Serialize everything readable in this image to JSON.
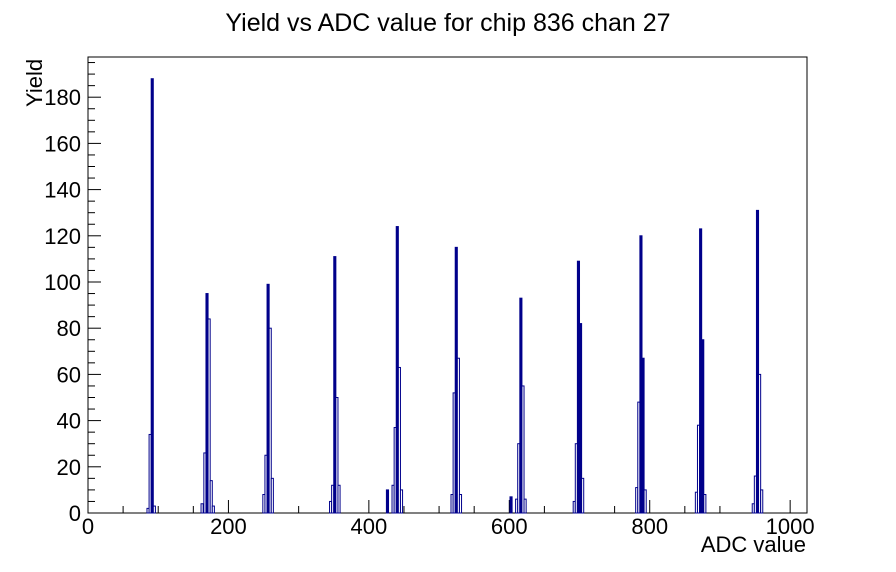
{
  "page": {
    "background": "#ffffff"
  },
  "chart_data": {
    "type": "bar",
    "title": "Yield vs ADC value for chip 836 chan 27",
    "xlabel": "ADC value",
    "ylabel": "Yield",
    "xlim": [
      0,
      1024
    ],
    "ylim": [
      0,
      197.4
    ],
    "x_major_ticks": [
      0,
      200,
      400,
      600,
      800,
      1000
    ],
    "x_minor_step": 50,
    "y_major_ticks": [
      0,
      20,
      40,
      60,
      80,
      100,
      120,
      140,
      160,
      180
    ],
    "y_minor_step": 5,
    "grid": false,
    "legend": false,
    "line_color": "#00008b",
    "frame_color": "#000000",
    "bin_width_adc": 3,
    "peaks": [
      {
        "center_adc": 90,
        "peak_height": 188,
        "bins": [
          [
            84,
            2,
            0
          ],
          [
            87,
            34,
            0
          ],
          [
            90,
            188,
            1
          ],
          [
            93,
            3,
            0
          ]
        ]
      },
      {
        "center_adc": 170,
        "peak_height": 95,
        "bins": [
          [
            161,
            4,
            0
          ],
          [
            165,
            26,
            0
          ],
          [
            168,
            95,
            1
          ],
          [
            171,
            84,
            0
          ],
          [
            174,
            14,
            0
          ],
          [
            177,
            3,
            0
          ]
        ]
      },
      {
        "center_adc": 256,
        "peak_height": 99,
        "bins": [
          [
            249,
            8,
            0
          ],
          [
            252,
            25,
            0
          ],
          [
            255,
            99,
            1
          ],
          [
            258,
            80,
            0
          ],
          [
            261,
            15,
            0
          ]
        ]
      },
      {
        "center_adc": 352,
        "peak_height": 111,
        "bins": [
          [
            344,
            5,
            0
          ],
          [
            347,
            12,
            0
          ],
          [
            350,
            111,
            1
          ],
          [
            353,
            50,
            0
          ],
          [
            356,
            12,
            0
          ]
        ]
      },
      {
        "center_adc": 438,
        "peak_height": 124,
        "bins": [
          [
            425,
            10,
            1
          ],
          [
            433,
            12,
            0
          ],
          [
            436,
            37,
            0
          ],
          [
            439,
            124,
            1
          ],
          [
            442,
            63,
            0
          ],
          [
            445,
            10,
            0
          ]
        ]
      },
      {
        "center_adc": 524,
        "peak_height": 115,
        "bins": [
          [
            517,
            8,
            0
          ],
          [
            520,
            52,
            0
          ],
          [
            523,
            115,
            1
          ],
          [
            526,
            67,
            0
          ],
          [
            529,
            8,
            0
          ]
        ]
      },
      {
        "center_adc": 615,
        "peak_height": 93,
        "bins": [
          [
            601,
            7,
            1
          ],
          [
            609,
            6,
            0
          ],
          [
            612,
            30,
            0
          ],
          [
            615,
            93,
            1
          ],
          [
            618,
            55,
            0
          ],
          [
            621,
            6,
            0
          ]
        ]
      },
      {
        "center_adc": 700,
        "peak_height": 109,
        "bins": [
          [
            691,
            5,
            0
          ],
          [
            694,
            30,
            0
          ],
          [
            697,
            109,
            1
          ],
          [
            700,
            82,
            1
          ],
          [
            703,
            15,
            0
          ]
        ]
      },
      {
        "center_adc": 787,
        "peak_height": 120,
        "bins": [
          [
            780,
            11,
            0
          ],
          [
            783,
            48,
            0
          ],
          [
            786,
            120,
            1
          ],
          [
            789,
            67,
            1
          ],
          [
            792,
            10,
            0
          ]
        ]
      },
      {
        "center_adc": 872,
        "peak_height": 123,
        "bins": [
          [
            865,
            9,
            0
          ],
          [
            868,
            38,
            0
          ],
          [
            871,
            123,
            1
          ],
          [
            874,
            75,
            1
          ],
          [
            877,
            8,
            0
          ]
        ]
      },
      {
        "center_adc": 953,
        "peak_height": 131,
        "bins": [
          [
            946,
            4,
            0
          ],
          [
            949,
            16,
            0
          ],
          [
            952,
            131,
            1
          ],
          [
            955,
            60,
            0
          ],
          [
            958,
            10,
            0
          ]
        ]
      }
    ]
  }
}
